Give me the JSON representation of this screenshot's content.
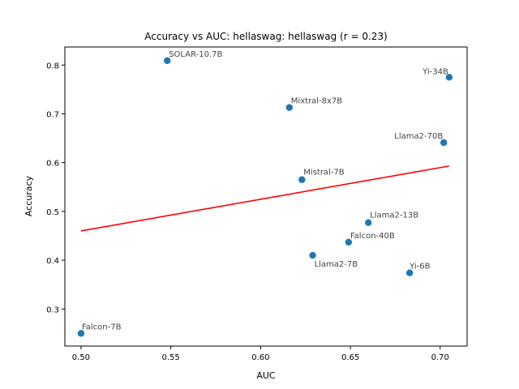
{
  "chart_data": {
    "type": "scatter",
    "title": "Accuracy vs AUC: hellaswag: hellaswag (r = 0.23)",
    "xlabel": "AUC",
    "ylabel": "Accuracy",
    "xlim": [
      0.491,
      0.715
    ],
    "ylim": [
      0.224,
      0.837
    ],
    "xticks": [
      0.5,
      0.55,
      0.6,
      0.65,
      0.7
    ],
    "xtick_labels": [
      "0.50",
      "0.55",
      "0.60",
      "0.65",
      "0.70"
    ],
    "yticks": [
      0.3,
      0.4,
      0.5,
      0.6,
      0.7,
      0.8
    ],
    "ytick_labels": [
      "0.3",
      "0.4",
      "0.5",
      "0.6",
      "0.7",
      "0.8"
    ],
    "grid": false,
    "points": [
      {
        "label": "SOLAR-10.7B",
        "x": 0.548,
        "y": 0.809
      },
      {
        "label": "Yi-34B",
        "x": 0.705,
        "y": 0.775
      },
      {
        "label": "Mixtral-8x7B",
        "x": 0.616,
        "y": 0.713
      },
      {
        "label": "Llama2-70B",
        "x": 0.702,
        "y": 0.641
      },
      {
        "label": "Mistral-7B",
        "x": 0.623,
        "y": 0.565
      },
      {
        "label": "Llama2-13B",
        "x": 0.66,
        "y": 0.477
      },
      {
        "label": "Falcon-40B",
        "x": 0.649,
        "y": 0.437
      },
      {
        "label": "Llama2-7B",
        "x": 0.629,
        "y": 0.41
      },
      {
        "label": "Yi-6B",
        "x": 0.683,
        "y": 0.374
      },
      {
        "label": "Falcon-7B",
        "x": 0.5,
        "y": 0.25
      }
    ],
    "trendline": {
      "x": [
        0.5,
        0.705
      ],
      "y": [
        0.46,
        0.593
      ]
    },
    "colors": {
      "points": "#1f77b4",
      "trendline": "#ff0000",
      "point_label": "#444444"
    }
  }
}
